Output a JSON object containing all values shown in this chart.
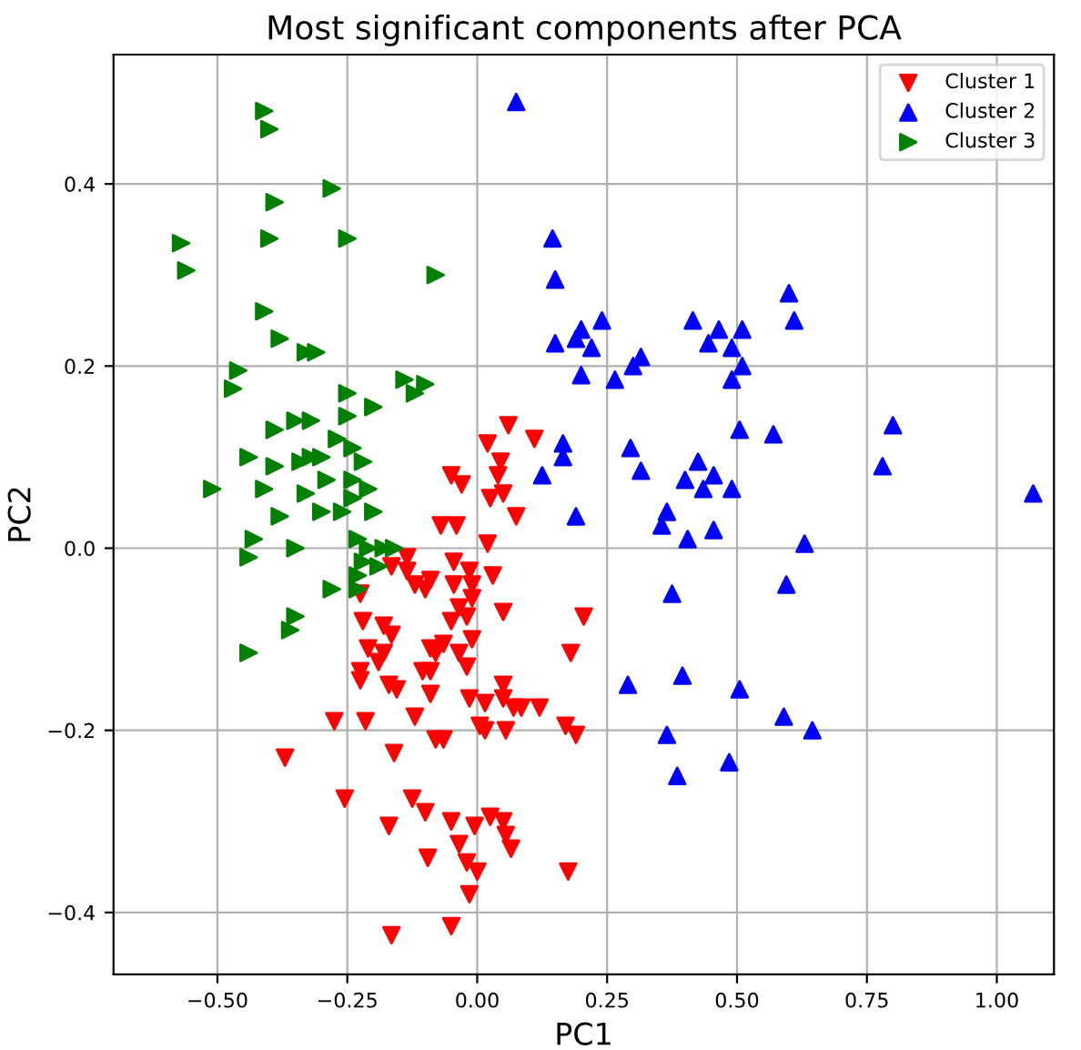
{
  "chart_data": {
    "type": "scatter",
    "title": "Most significant components after PCA",
    "xlabel": "PC1",
    "ylabel": "PC2",
    "xlim": [
      -0.7,
      1.11
    ],
    "ylim": [
      -0.468,
      0.542
    ],
    "xticks": [
      {
        "value": -0.5,
        "label": "−0.50"
      },
      {
        "value": -0.25,
        "label": "−0.25"
      },
      {
        "value": 0,
        "label": "0.00"
      },
      {
        "value": 0.25,
        "label": "0.25"
      },
      {
        "value": 0.5,
        "label": "0.50"
      },
      {
        "value": 0.75,
        "label": "0.75"
      },
      {
        "value": 1,
        "label": "1.00"
      }
    ],
    "yticks": [
      {
        "value": -0.4,
        "label": "−0.4"
      },
      {
        "value": -0.2,
        "label": "−0.2"
      },
      {
        "value": 0,
        "label": "0.0"
      },
      {
        "value": 0.2,
        "label": "0.2"
      },
      {
        "value": 0.4,
        "label": "0.4"
      }
    ],
    "grid": true,
    "legend": "top right",
    "series": [
      {
        "name": "Cluster 1",
        "color": "#ff0000",
        "marker": "triangle_down",
        "x": [
          0.02,
          0.06,
          0.11,
          -0.05,
          -0.03,
          0.045,
          0.04,
          0.025,
          0.05,
          0.075,
          -0.07,
          -0.04,
          0.02,
          -0.135,
          -0.165,
          -0.135,
          -0.12,
          -0.09,
          -0.1,
          -0.045,
          -0.015,
          -0.01,
          -0.045,
          0.03,
          -0.225,
          -0.01,
          -0.035,
          -0.02,
          0.05,
          0.205,
          -0.22,
          -0.05,
          -0.18,
          -0.165,
          -0.065,
          -0.01,
          -0.21,
          -0.18,
          -0.09,
          -0.08,
          -0.035,
          -0.19,
          0.18,
          -0.105,
          -0.09,
          -0.02,
          -0.225,
          -0.225,
          -0.17,
          -0.155,
          -0.09,
          0.05,
          -0.015,
          0.015,
          0.05,
          0.07,
          0.085,
          0.12,
          -0.12,
          -0.275,
          -0.215,
          0.005,
          0.015,
          0.055,
          0.17,
          0.19,
          -0.08,
          -0.065,
          -0.37,
          -0.16,
          -0.255,
          -0.125,
          -0.1,
          -0.17,
          -0.05,
          -0.005,
          0.025,
          0.05,
          0.055,
          0.065,
          -0.035,
          -0.095,
          -0.02,
          0.0,
          -0.015,
          0.175,
          -0.165,
          -0.05
        ],
        "values": [
          0.115,
          0.135,
          0.12,
          0.08,
          0.07,
          0.095,
          0.08,
          0.055,
          0.06,
          0.035,
          0.025,
          0.025,
          0.005,
          -0.01,
          -0.02,
          -0.025,
          -0.04,
          -0.035,
          -0.045,
          -0.015,
          -0.025,
          -0.04,
          -0.04,
          -0.03,
          -0.05,
          -0.055,
          -0.065,
          -0.075,
          -0.07,
          -0.075,
          -0.08,
          -0.08,
          -0.085,
          -0.095,
          -0.105,
          -0.1,
          -0.11,
          -0.115,
          -0.11,
          -0.115,
          -0.115,
          -0.125,
          -0.115,
          -0.135,
          -0.135,
          -0.13,
          -0.135,
          -0.145,
          -0.15,
          -0.155,
          -0.16,
          -0.15,
          -0.165,
          -0.17,
          -0.165,
          -0.175,
          -0.175,
          -0.175,
          -0.185,
          -0.19,
          -0.19,
          -0.195,
          -0.2,
          -0.2,
          -0.195,
          -0.205,
          -0.21,
          -0.21,
          -0.23,
          -0.225,
          -0.275,
          -0.275,
          -0.29,
          -0.305,
          -0.3,
          -0.305,
          -0.295,
          -0.3,
          -0.315,
          -0.33,
          -0.325,
          -0.34,
          -0.345,
          -0.355,
          -0.38,
          -0.355,
          -0.425,
          -0.415
        ]
      },
      {
        "name": "Cluster 2",
        "color": "#0000ff",
        "marker": "triangle_up",
        "x": [
          0.075,
          0.145,
          0.15,
          0.15,
          0.19,
          0.2,
          0.22,
          0.24,
          0.2,
          0.265,
          0.3,
          0.315,
          0.415,
          0.445,
          0.465,
          0.51,
          0.49,
          0.51,
          0.49,
          0.6,
          0.61,
          0.505,
          0.57,
          0.8,
          0.165,
          0.295,
          0.165,
          0.125,
          0.315,
          0.425,
          0.4,
          0.455,
          0.435,
          0.49,
          0.19,
          0.365,
          0.355,
          0.405,
          0.455,
          0.63,
          0.78,
          1.07,
          0.595,
          0.375,
          0.29,
          0.395,
          0.505,
          0.59,
          0.645,
          0.365,
          0.485,
          0.385
        ],
        "values": [
          0.49,
          0.34,
          0.295,
          0.225,
          0.23,
          0.24,
          0.22,
          0.25,
          0.19,
          0.185,
          0.2,
          0.21,
          0.25,
          0.225,
          0.24,
          0.24,
          0.22,
          0.2,
          0.185,
          0.28,
          0.25,
          0.13,
          0.125,
          0.135,
          0.115,
          0.11,
          0.1,
          0.08,
          0.085,
          0.095,
          0.075,
          0.08,
          0.065,
          0.065,
          0.035,
          0.04,
          0.025,
          0.01,
          0.02,
          0.005,
          0.09,
          0.06,
          -0.04,
          -0.05,
          -0.15,
          -0.14,
          -0.155,
          -0.185,
          -0.2,
          -0.205,
          -0.235,
          -0.25
        ]
      },
      {
        "name": "Cluster 3",
        "color": "#008000",
        "marker": "triangle_right",
        "x": [
          -0.57,
          -0.56,
          -0.41,
          -0.4,
          -0.39,
          -0.4,
          -0.28,
          -0.25,
          -0.08,
          -0.41,
          -0.38,
          -0.33,
          -0.31,
          -0.46,
          -0.47,
          -0.14,
          -0.1,
          -0.12,
          -0.25,
          -0.25,
          -0.2,
          -0.39,
          -0.35,
          -0.32,
          -0.44,
          -0.39,
          -0.34,
          -0.32,
          -0.3,
          -0.27,
          -0.24,
          -0.22,
          -0.29,
          -0.24,
          -0.51,
          -0.41,
          -0.33,
          -0.24,
          -0.21,
          -0.38,
          -0.31,
          -0.3,
          -0.26,
          -0.2,
          -0.43,
          -0.35,
          -0.23,
          -0.21,
          -0.18,
          -0.16,
          -0.44,
          -0.22,
          -0.19,
          -0.28,
          -0.23,
          -0.23,
          -0.35,
          -0.36,
          -0.44
        ],
        "values": [
          0.335,
          0.305,
          0.48,
          0.46,
          0.38,
          0.34,
          0.395,
          0.34,
          0.3,
          0.26,
          0.23,
          0.215,
          0.215,
          0.195,
          0.175,
          0.185,
          0.18,
          0.17,
          0.17,
          0.145,
          0.155,
          0.13,
          0.14,
          0.14,
          0.1,
          0.09,
          0.095,
          0.1,
          0.1,
          0.12,
          0.11,
          0.095,
          0.075,
          0.075,
          0.065,
          0.065,
          0.06,
          0.055,
          0.065,
          0.035,
          null,
          0.04,
          0.04,
          0.04,
          0.01,
          0.0,
          0.01,
          0.0,
          0.0,
          0.0,
          -0.01,
          -0.015,
          -0.02,
          -0.045,
          -0.03,
          -0.045,
          -0.075,
          -0.09,
          -0.115
        ]
      }
    ]
  }
}
